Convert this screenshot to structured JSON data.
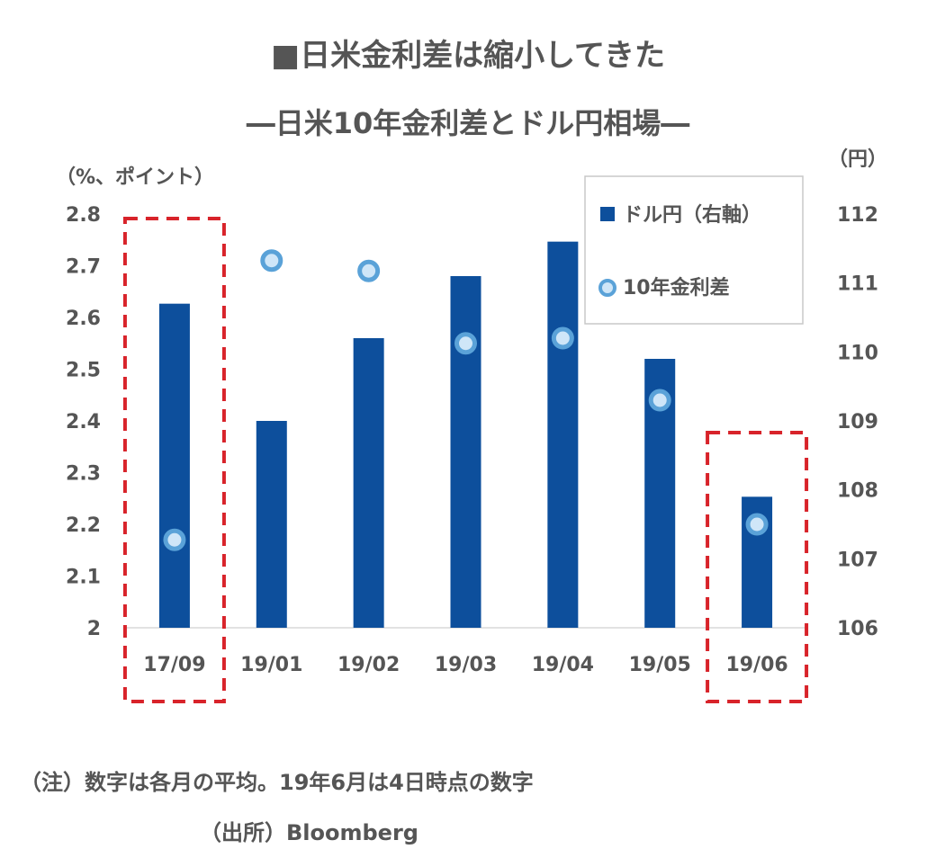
{
  "header": {
    "title": "■日米金利差は縮小してきた",
    "subtitle": "―日米10年金利差とドル円相場―"
  },
  "notes": {
    "note": "（注）数字は各月の平均。19年6月は4日時点の数字",
    "source": "（出所）Bloomberg"
  },
  "colors": {
    "bar": "#0d4f9c",
    "marker_fill": "#cfe6f8",
    "marker_ring": "#5aa2d8",
    "highlight_box": "#d8232a",
    "text": "#555555"
  },
  "chart_data": {
    "type": "bar",
    "categories": [
      "17/09",
      "19/01",
      "19/02",
      "19/03",
      "19/04",
      "19/05",
      "19/06"
    ],
    "series": [
      {
        "name": "ドル円（右軸）",
        "type": "bar",
        "axis": "right",
        "values": [
          110.7,
          109.0,
          110.2,
          111.1,
          111.6,
          109.9,
          107.9
        ]
      },
      {
        "name": "10年金利差",
        "type": "scatter",
        "axis": "left",
        "values": [
          2.17,
          2.71,
          2.69,
          2.55,
          2.56,
          2.44,
          2.2
        ]
      }
    ],
    "left_axis": {
      "label": "（%、ポイント）",
      "ylim": [
        2,
        2.8
      ],
      "ticks": [
        "2",
        "2.1",
        "2.2",
        "2.3",
        "2.4",
        "2.5",
        "2.6",
        "2.7",
        "2.8"
      ]
    },
    "right_axis": {
      "label": "（円）",
      "ylim": [
        106,
        112
      ],
      "ticks": [
        "106",
        "107",
        "108",
        "109",
        "110",
        "111",
        "112"
      ]
    },
    "highlighted_categories": [
      "17/09",
      "19/06"
    ],
    "legend_position": "top-right",
    "grid": false
  }
}
